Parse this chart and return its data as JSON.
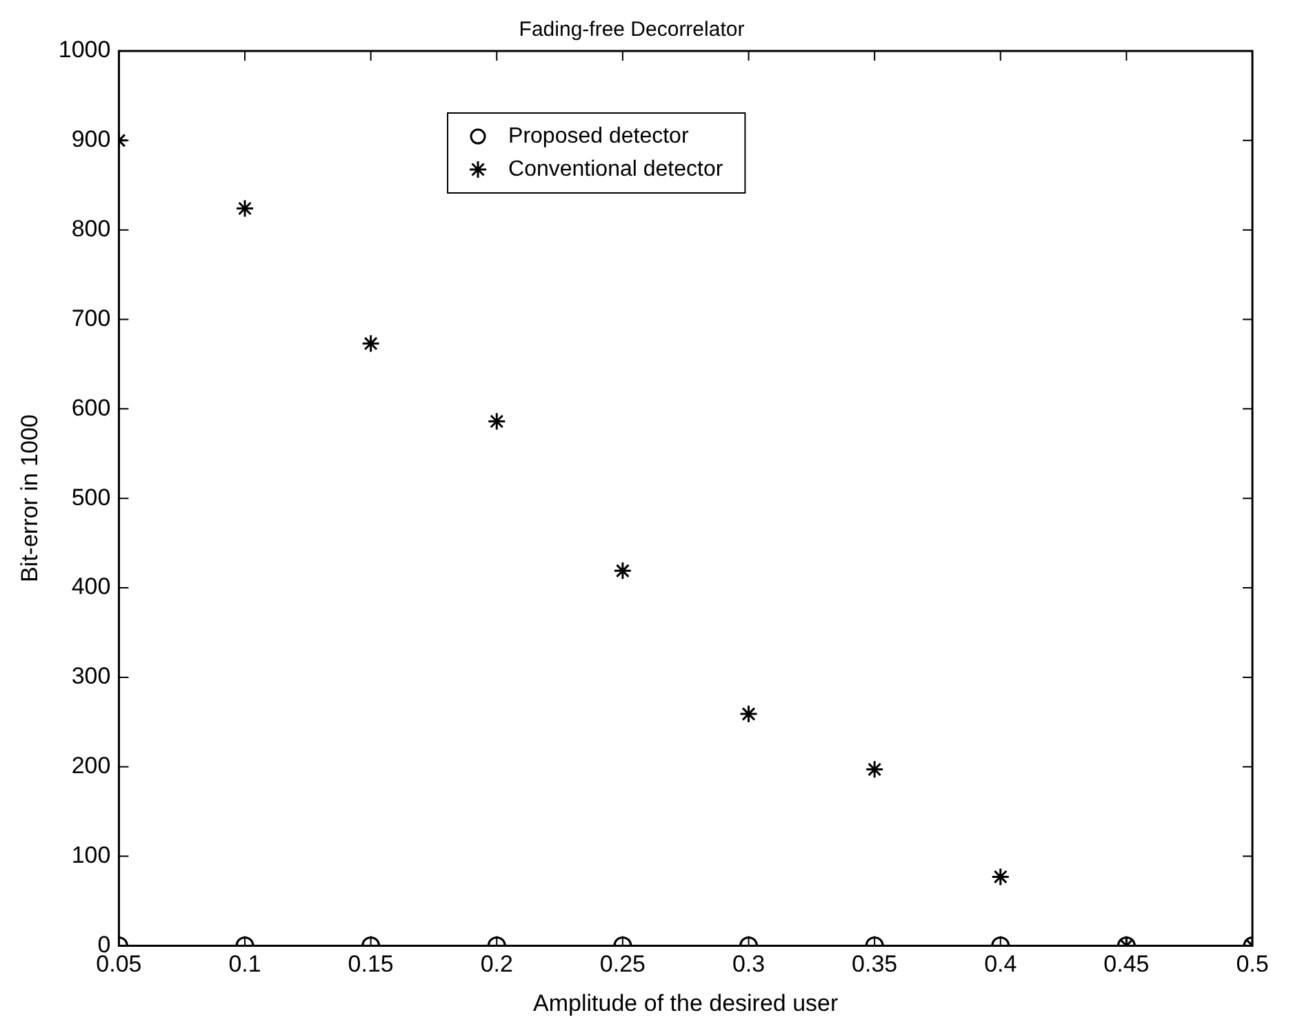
{
  "chart_data": {
    "type": "scatter",
    "title": "Fading-free Decorrelator",
    "xlabel": "Amplitude of the desired user",
    "ylabel": "Bit-error in 1000",
    "x": [
      0.05,
      0.1,
      0.15,
      0.2,
      0.25,
      0.3,
      0.35,
      0.4,
      0.45,
      0.5
    ],
    "series": [
      {
        "name": "Proposed detector",
        "color": "#000000",
        "marker": "circle",
        "values": [
          0,
          0,
          0,
          0,
          0,
          0,
          0,
          0,
          0,
          0
        ]
      },
      {
        "name": "Conventional detector",
        "color": "#000000",
        "marker": "cross",
        "values": [
          900,
          824,
          673,
          586,
          419,
          259,
          197,
          77,
          0,
          0
        ]
      }
    ],
    "xlim": [
      0.05,
      0.5
    ],
    "xticks": [
      0.05,
      0.1,
      0.15,
      0.2,
      0.25,
      0.3,
      0.35,
      0.4,
      0.45,
      0.5
    ],
    "ylim": [
      0,
      1000
    ],
    "yticks": [
      0,
      100,
      200,
      300,
      400,
      500,
      600,
      700,
      800,
      900,
      1000
    ],
    "grid": false,
    "legend": "top left"
  }
}
